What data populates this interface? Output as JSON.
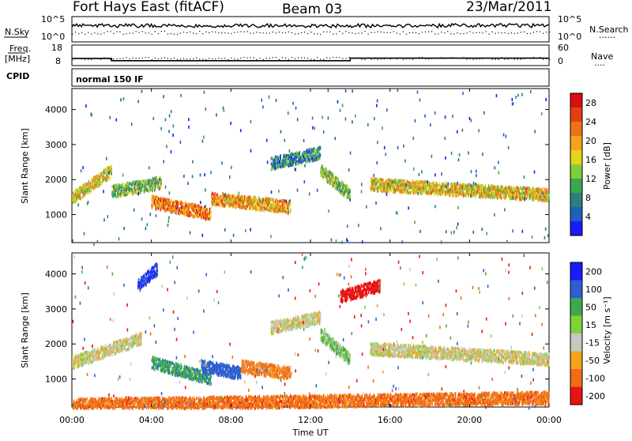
{
  "header": {
    "station": "Fort Hays East (fitACF)",
    "beam": "Beam 03",
    "date": "23/Mar/2011"
  },
  "panels": {
    "nsky": {
      "left_label": "N.Sky",
      "left_ticks": [
        "10^5",
        "10^0"
      ],
      "right_ticks": [
        "10^5",
        "10^0"
      ],
      "right_label": "N.Search",
      "right_legend": "......"
    },
    "freq": {
      "left_label_1": "Freq.",
      "left_label_2": "[MHz]",
      "left_ticks": [
        "18",
        "8"
      ],
      "right_ticks": [
        "60",
        "0"
      ],
      "right_label": "Nave",
      "right_legend": "....",
      "steps": [
        {
          "from_hour": 0,
          "to_hour": 2,
          "mhz": 11.5
        },
        {
          "from_hour": 2,
          "to_hour": 14,
          "mhz": 10.4
        },
        {
          "from_hour": 14,
          "to_hour": 24,
          "mhz": 11.6
        }
      ]
    },
    "cpid": {
      "label": "CPID",
      "value": "normal 150 IF"
    }
  },
  "chart_data": [
    {
      "type": "heatmap",
      "name": "power",
      "ylabel": "Slant Range [km]",
      "xlim": [
        0,
        24
      ],
      "ylim": [
        200,
        4600
      ],
      "yticks": [
        "4000",
        "3000",
        "2000",
        "1000"
      ],
      "ytick_values": [
        4000,
        3000,
        2000,
        1000
      ],
      "colorbar": {
        "label": "Power [dB]",
        "ticks": [
          "28",
          "24",
          "20",
          "16",
          "12",
          "8",
          "4"
        ],
        "tick_values": [
          28,
          24,
          20,
          16,
          12,
          8,
          4
        ],
        "colors": [
          "#1a1aff",
          "#1f5fbf",
          "#2d7f7f",
          "#3aa84e",
          "#7fcf3a",
          "#e6d21f",
          "#f5a31a",
          "#f07018",
          "#e63d14",
          "#d60f0f"
        ],
        "range": [
          0,
          30
        ]
      },
      "echo_bands": [
        {
          "start_hour": 0.0,
          "end_hour": 2.0,
          "range_start_km": 1500,
          "range_end_km": 2300,
          "power_db": 16
        },
        {
          "start_hour": 2.0,
          "end_hour": 4.5,
          "range_start_km": 1700,
          "range_end_km": 1950,
          "power_db": 12
        },
        {
          "start_hour": 4.0,
          "end_hour": 7.0,
          "range_start_km": 1400,
          "range_end_km": 1050,
          "power_db": 22
        },
        {
          "start_hour": 7.0,
          "end_hour": 11.0,
          "range_start_km": 1500,
          "range_end_km": 1250,
          "power_db": 20
        },
        {
          "start_hour": 10.0,
          "end_hour": 12.5,
          "range_start_km": 2500,
          "range_end_km": 2800,
          "power_db": 8
        },
        {
          "start_hour": 12.5,
          "end_hour": 14.0,
          "range_start_km": 2300,
          "range_end_km": 1600,
          "power_db": 12
        },
        {
          "start_hour": 15.0,
          "end_hour": 24.0,
          "range_start_km": 1900,
          "range_end_km": 1600,
          "power_db": 18
        }
      ]
    },
    {
      "type": "heatmap",
      "name": "velocity",
      "ylabel": "Slant Range [km]",
      "xlabel": "Time UT",
      "xlim": [
        0,
        24
      ],
      "ylim": [
        200,
        4600
      ],
      "xticks": [
        "00:00",
        "04:00",
        "08:00",
        "12:00",
        "16:00",
        "20:00",
        "00:00"
      ],
      "xtick_values": [
        0,
        4,
        8,
        12,
        16,
        20,
        24
      ],
      "yticks": [
        "4000",
        "3000",
        "2000",
        "1000"
      ],
      "ytick_values": [
        4000,
        3000,
        2000,
        1000
      ],
      "colorbar": {
        "label": "Velocity [m s⁻¹]",
        "ticks": [
          "200",
          "100",
          "50",
          "15",
          "-15",
          "-50",
          "-100",
          "-200"
        ],
        "colors": [
          "#1a1aff",
          "#2c5fd0",
          "#3fa84e",
          "#7fd23a",
          "#c8c8c0",
          "#f5a31a",
          "#f06a18",
          "#e61414"
        ]
      },
      "echo_bands": [
        {
          "start_hour": 0.0,
          "end_hour": 3.5,
          "range_start_km": 1500,
          "range_end_km": 2200,
          "velocity": 0
        },
        {
          "start_hour": 3.3,
          "end_hour": 4.3,
          "range_start_km": 3700,
          "range_end_km": 4200,
          "velocity": 150
        },
        {
          "start_hour": 4.0,
          "end_hour": 7.0,
          "range_start_km": 1500,
          "range_end_km": 1050,
          "velocity": 60
        },
        {
          "start_hour": 6.5,
          "end_hour": 8.5,
          "range_start_km": 1400,
          "range_end_km": 1200,
          "velocity": 120
        },
        {
          "start_hour": 8.5,
          "end_hour": 11.0,
          "range_start_km": 1400,
          "range_end_km": 1200,
          "velocity": -40
        },
        {
          "start_hour": 10.0,
          "end_hour": 12.5,
          "range_start_km": 2500,
          "range_end_km": 2800,
          "velocity": 0
        },
        {
          "start_hour": 12.5,
          "end_hour": 14.0,
          "range_start_km": 2300,
          "range_end_km": 1600,
          "velocity": 30
        },
        {
          "start_hour": 13.5,
          "end_hour": 15.5,
          "range_start_km": 3400,
          "range_end_km": 3700,
          "velocity": -200
        },
        {
          "start_hour": 15.0,
          "end_hour": 24.0,
          "range_start_km": 1900,
          "range_end_km": 1600,
          "velocity": 0
        },
        {
          "start_hour": 0.0,
          "end_hour": 24.0,
          "range_start_km": 300,
          "range_end_km": 500,
          "velocity": -50
        }
      ]
    }
  ]
}
